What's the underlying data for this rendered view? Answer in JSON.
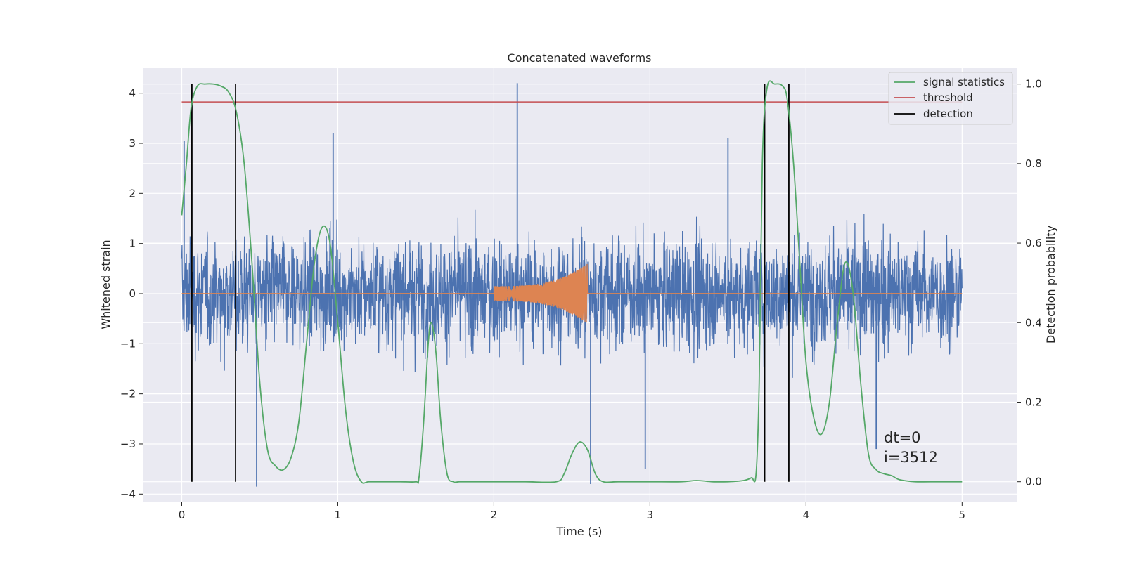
{
  "chart_data": {
    "type": "line",
    "title": "Concatenated waveforms",
    "xlabel": "Time (s)",
    "ylabel": "Whitened strain",
    "y2label": "Detection probability",
    "xlim": [
      -0.25,
      5.35
    ],
    "ylim": [
      -4.15,
      4.5
    ],
    "y2lim": [
      -0.05,
      1.04
    ],
    "x_ticks": [
      0,
      1,
      2,
      3,
      4,
      5
    ],
    "x_tick_labels": [
      "0",
      "1",
      "2",
      "3",
      "4",
      "5"
    ],
    "y_ticks": [
      -4,
      -3,
      -2,
      -1,
      0,
      1,
      2,
      3,
      4
    ],
    "y_tick_labels": [
      "−4",
      "−3",
      "−2",
      "−1",
      "0",
      "1",
      "2",
      "3",
      "4"
    ],
    "y2_ticks": [
      0.0,
      0.2,
      0.4,
      0.6,
      0.8,
      1.0
    ],
    "y2_tick_labels": [
      "0.0",
      "0.2",
      "0.4",
      "0.6",
      "0.8",
      "1.0"
    ],
    "grid": true,
    "legend_position": "top-right",
    "colors": {
      "noise": "#4c72b0",
      "template": "#dd8452",
      "signal_statistics": "#55a868",
      "threshold": "#c44e52",
      "detection": "#000000",
      "axes_bg": "#eaeaf2",
      "grid": "#ffffff"
    },
    "series": [
      {
        "name": "signal statistics",
        "axis": "right",
        "x": [
          0.0,
          0.03,
          0.06,
          0.1,
          0.15,
          0.2,
          0.25,
          0.3,
          0.35,
          0.4,
          0.45,
          0.5,
          0.55,
          0.6,
          0.65,
          0.7,
          0.75,
          0.8,
          0.85,
          0.9,
          0.95,
          1.0,
          1.05,
          1.1,
          1.15,
          1.2,
          1.3,
          1.4,
          1.5,
          1.52,
          1.55,
          1.58,
          1.6,
          1.63,
          1.66,
          1.7,
          1.74,
          1.78,
          1.85,
          2.0,
          2.2,
          2.4,
          2.45,
          2.5,
          2.55,
          2.6,
          2.65,
          2.7,
          2.8,
          3.0,
          3.2,
          3.3,
          3.4,
          3.5,
          3.6,
          3.65,
          3.68,
          3.7,
          3.72,
          3.75,
          3.8,
          3.85,
          3.88,
          3.92,
          3.96,
          4.0,
          4.05,
          4.1,
          4.15,
          4.2,
          4.25,
          4.3,
          4.35,
          4.4,
          4.45,
          4.5,
          4.55,
          4.6,
          4.7,
          4.8,
          5.0
        ],
        "values": [
          0.67,
          0.8,
          0.94,
          0.995,
          1.0,
          1.0,
          0.995,
          0.98,
          0.93,
          0.8,
          0.55,
          0.25,
          0.08,
          0.04,
          0.03,
          0.06,
          0.15,
          0.35,
          0.55,
          0.64,
          0.6,
          0.4,
          0.18,
          0.05,
          0.0,
          0.0,
          0.0,
          0.0,
          0.0,
          0.01,
          0.15,
          0.35,
          0.4,
          0.32,
          0.15,
          0.02,
          0.0,
          0.0,
          0.0,
          0.0,
          0.0,
          0.0,
          0.02,
          0.07,
          0.1,
          0.08,
          0.02,
          0.0,
          0.0,
          0.0,
          0.0,
          0.003,
          0.0,
          0.0,
          0.003,
          0.01,
          0.02,
          0.25,
          0.8,
          0.99,
          1.0,
          0.995,
          0.96,
          0.8,
          0.55,
          0.3,
          0.16,
          0.12,
          0.2,
          0.4,
          0.55,
          0.48,
          0.25,
          0.07,
          0.03,
          0.02,
          0.015,
          0.005,
          0.0,
          0.0,
          0.0
        ]
      },
      {
        "name": "threshold",
        "axis": "right",
        "x": [
          0,
          5
        ],
        "values": [
          0.955,
          0.955
        ]
      },
      {
        "name": "detection",
        "axis": "right",
        "type": "vlines",
        "x": [
          0.065,
          0.345,
          3.735,
          3.89
        ],
        "ymin": 0.0,
        "ymax": 1.0
      }
    ],
    "noise_envelope": {
      "axis": "left",
      "x_start": 0,
      "x_end": 5,
      "typical_abs_max": 2.2,
      "outliers": [
        {
          "x": 0.015,
          "value": 3.05
        },
        {
          "x": 0.48,
          "value": -3.85
        },
        {
          "x": 0.97,
          "value": 3.2
        },
        {
          "x": 2.15,
          "value": 4.2
        },
        {
          "x": 2.62,
          "value": -3.8
        },
        {
          "x": 2.97,
          "value": -3.5
        },
        {
          "x": 3.5,
          "value": 3.1
        },
        {
          "x": 4.45,
          "value": -3.1
        }
      ]
    },
    "template_waveform": {
      "axis": "left",
      "chirp_start": 2.0,
      "chirp_end": 2.6,
      "amplitude_start": 0.15,
      "amplitude_end": 0.6
    },
    "annotations": [
      "dt=0",
      "i=3512"
    ]
  }
}
